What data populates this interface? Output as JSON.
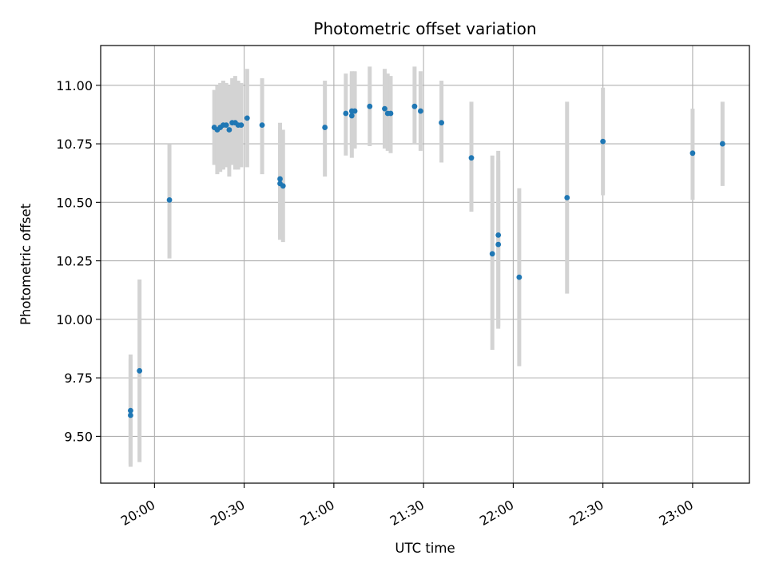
{
  "chart_data": {
    "type": "scatter",
    "title": "Photometric offset variation",
    "xlabel": "UTC time",
    "ylabel": "Photometric offset",
    "grid": true,
    "colors": {
      "point": "#1f77b4",
      "errorbar": "#d3d3d3",
      "grid": "#b0b0b0"
    },
    "xlim": [
      "19:42",
      "23:19"
    ],
    "ylim": [
      9.3,
      11.17
    ],
    "x_ticks": [
      "20:00",
      "20:30",
      "21:00",
      "21:30",
      "22:00",
      "22:30",
      "23:00"
    ],
    "y_ticks": [
      9.5,
      9.75,
      10.0,
      10.25,
      10.5,
      10.75,
      11.0
    ],
    "y_tick_labels": [
      "9.50",
      "9.75",
      "10.00",
      "10.25",
      "10.50",
      "10.75",
      "11.00"
    ],
    "points": [
      {
        "x": "19:52",
        "y": 9.61,
        "low": 9.38,
        "high": 9.85
      },
      {
        "x": "19:52",
        "y": 9.59,
        "low": 9.37,
        "high": 9.83
      },
      {
        "x": "19:55",
        "y": 9.78,
        "low": 9.39,
        "high": 10.17
      },
      {
        "x": "20:05",
        "y": 10.51,
        "low": 10.26,
        "high": 10.75
      },
      {
        "x": "20:20",
        "y": 10.82,
        "low": 10.66,
        "high": 10.98
      },
      {
        "x": "20:21",
        "y": 10.81,
        "low": 10.62,
        "high": 11.0
      },
      {
        "x": "20:22",
        "y": 10.82,
        "low": 10.63,
        "high": 11.01
      },
      {
        "x": "20:23",
        "y": 10.83,
        "low": 10.64,
        "high": 11.02
      },
      {
        "x": "20:24",
        "y": 10.83,
        "low": 10.65,
        "high": 11.01
      },
      {
        "x": "20:25",
        "y": 10.81,
        "low": 10.61,
        "high": 11.0
      },
      {
        "x": "20:26",
        "y": 10.84,
        "low": 10.66,
        "high": 11.03
      },
      {
        "x": "20:27",
        "y": 10.84,
        "low": 10.64,
        "high": 11.04
      },
      {
        "x": "20:28",
        "y": 10.83,
        "low": 10.64,
        "high": 11.02
      },
      {
        "x": "20:29",
        "y": 10.83,
        "low": 10.65,
        "high": 11.01
      },
      {
        "x": "20:31",
        "y": 10.86,
        "low": 10.65,
        "high": 11.07
      },
      {
        "x": "20:36",
        "y": 10.83,
        "low": 10.62,
        "high": 11.03
      },
      {
        "x": "20:42",
        "y": 10.6,
        "low": 10.35,
        "high": 10.84
      },
      {
        "x": "20:42",
        "y": 10.58,
        "low": 10.34,
        "high": 10.82
      },
      {
        "x": "20:43",
        "y": 10.57,
        "low": 10.33,
        "high": 10.81
      },
      {
        "x": "20:57",
        "y": 10.82,
        "low": 10.61,
        "high": 11.02
      },
      {
        "x": "21:04",
        "y": 10.88,
        "low": 10.7,
        "high": 11.05
      },
      {
        "x": "21:06",
        "y": 10.89,
        "low": 10.73,
        "high": 11.06
      },
      {
        "x": "21:06",
        "y": 10.87,
        "low": 10.69,
        "high": 11.05
      },
      {
        "x": "21:07",
        "y": 10.89,
        "low": 10.73,
        "high": 11.06
      },
      {
        "x": "21:12",
        "y": 10.91,
        "low": 10.74,
        "high": 11.08
      },
      {
        "x": "21:17",
        "y": 10.9,
        "low": 10.73,
        "high": 11.07
      },
      {
        "x": "21:18",
        "y": 10.88,
        "low": 10.72,
        "high": 11.05
      },
      {
        "x": "21:19",
        "y": 10.88,
        "low": 10.71,
        "high": 11.04
      },
      {
        "x": "21:27",
        "y": 10.91,
        "low": 10.75,
        "high": 11.08
      },
      {
        "x": "21:29",
        "y": 10.89,
        "low": 10.72,
        "high": 11.06
      },
      {
        "x": "21:36",
        "y": 10.84,
        "low": 10.67,
        "high": 11.02
      },
      {
        "x": "21:46",
        "y": 10.69,
        "low": 10.46,
        "high": 10.93
      },
      {
        "x": "21:53",
        "y": 10.28,
        "low": 9.87,
        "high": 10.7
      },
      {
        "x": "21:55",
        "y": 10.36,
        "low": 9.97,
        "high": 10.72
      },
      {
        "x": "21:55",
        "y": 10.32,
        "low": 9.96,
        "high": 10.68
      },
      {
        "x": "22:02",
        "y": 10.18,
        "low": 9.8,
        "high": 10.56
      },
      {
        "x": "22:18",
        "y": 10.52,
        "low": 10.11,
        "high": 10.93
      },
      {
        "x": "22:30",
        "y": 10.76,
        "low": 10.53,
        "high": 10.99
      },
      {
        "x": "23:00",
        "y": 10.71,
        "low": 10.51,
        "high": 10.9
      },
      {
        "x": "23:10",
        "y": 10.75,
        "low": 10.57,
        "high": 10.93
      }
    ]
  }
}
